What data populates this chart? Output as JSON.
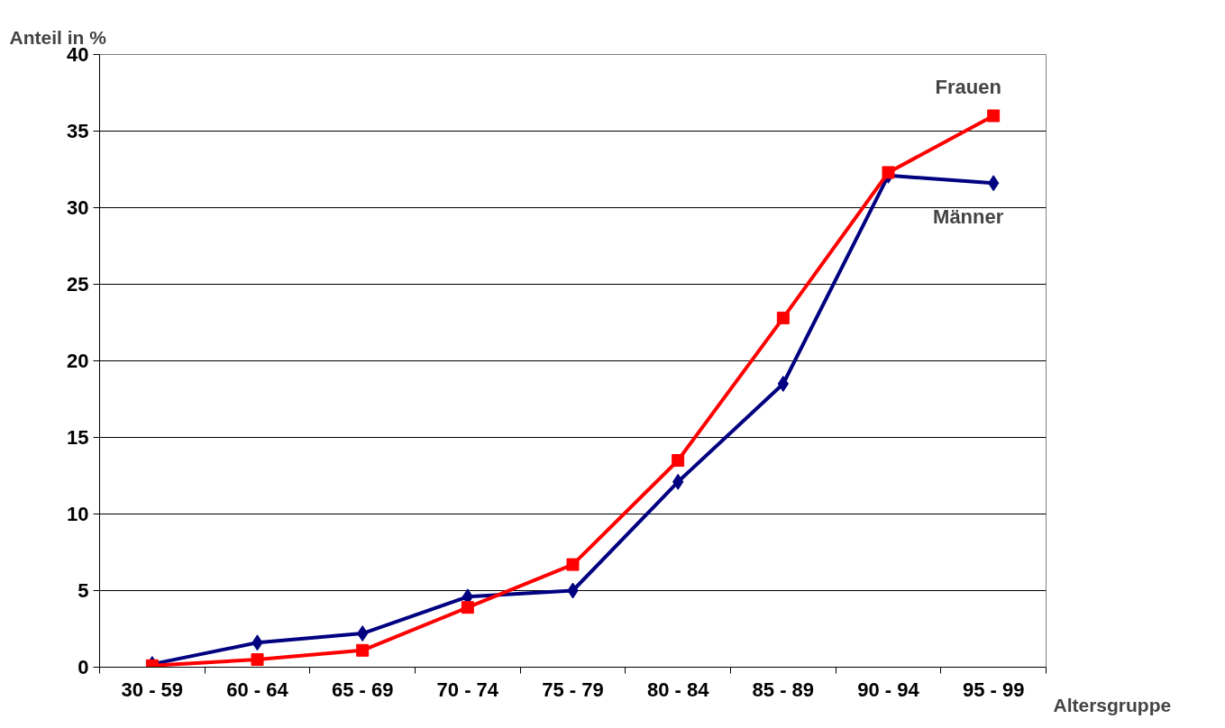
{
  "chart_data": {
    "type": "line",
    "ylabel": "Anteil in %",
    "xlabel": "Altersgruppe",
    "categories": [
      "30 - 59",
      "60 - 64",
      "65 - 69",
      "70 - 74",
      "75 - 79",
      "80 - 84",
      "85 - 89",
      "90 - 94",
      "95 - 99"
    ],
    "series": [
      {
        "name": "Männer",
        "color": "#000080",
        "marker": "diamond",
        "values": [
          0.2,
          1.6,
          2.2,
          4.6,
          5.0,
          12.1,
          18.5,
          32.1,
          31.6
        ]
      },
      {
        "name": "Frauen",
        "color": "#ff0000",
        "marker": "square",
        "values": [
          0.1,
          0.5,
          1.1,
          3.9,
          6.7,
          13.5,
          22.8,
          32.3,
          36.0
        ]
      }
    ],
    "ylim": [
      0,
      40
    ],
    "yticks": [
      0,
      5,
      10,
      15,
      20,
      25,
      30,
      35,
      40
    ],
    "grid": "y"
  }
}
